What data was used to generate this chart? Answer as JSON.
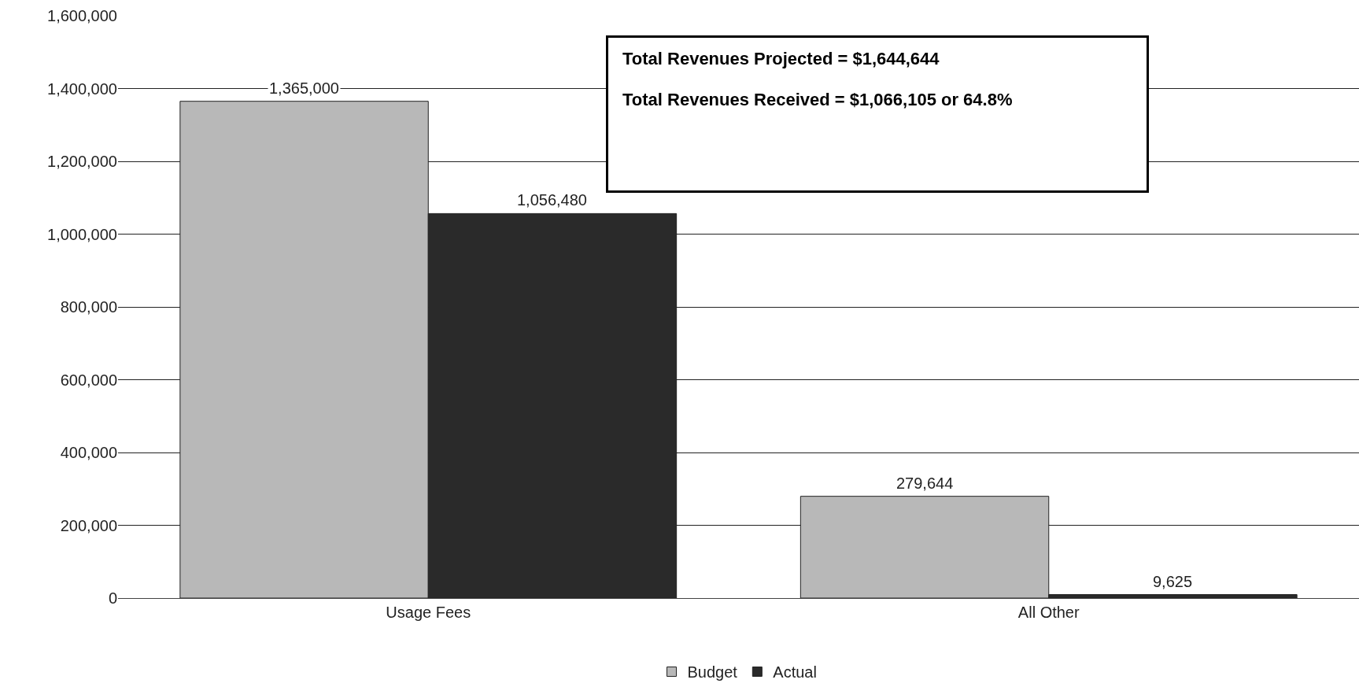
{
  "chart_data": {
    "type": "bar",
    "categories": [
      "Usage Fees",
      "All Other"
    ],
    "series": [
      {
        "name": "Budget",
        "color": "#b8b8b8",
        "values": [
          1365000,
          279644
        ],
        "value_labels": [
          "1,365,000",
          "279,644"
        ]
      },
      {
        "name": "Actual",
        "color": "#2a2a2a",
        "values": [
          1056480,
          9625
        ],
        "value_labels": [
          "1,056,480",
          "9,625"
        ]
      }
    ],
    "ylim": [
      0,
      1600000
    ],
    "yticks": [
      {
        "value": 0,
        "label": "0"
      },
      {
        "value": 200000,
        "label": "200,000"
      },
      {
        "value": 400000,
        "label": "400,000"
      },
      {
        "value": 600000,
        "label": "600,000"
      },
      {
        "value": 800000,
        "label": "800,000"
      },
      {
        "value": 1000000,
        "label": "1,000,000"
      },
      {
        "value": 1200000,
        "label": "1,200,000"
      },
      {
        "value": 1400000,
        "label": "1,400,000"
      },
      {
        "value": 1600000,
        "label": "1,600,000"
      }
    ],
    "grid": "y",
    "legend": "bottom",
    "annotations": [
      "Total Revenues Projected = $1,644,644",
      "Total Revenues Received = $1,066,105 or 64.8%"
    ]
  }
}
